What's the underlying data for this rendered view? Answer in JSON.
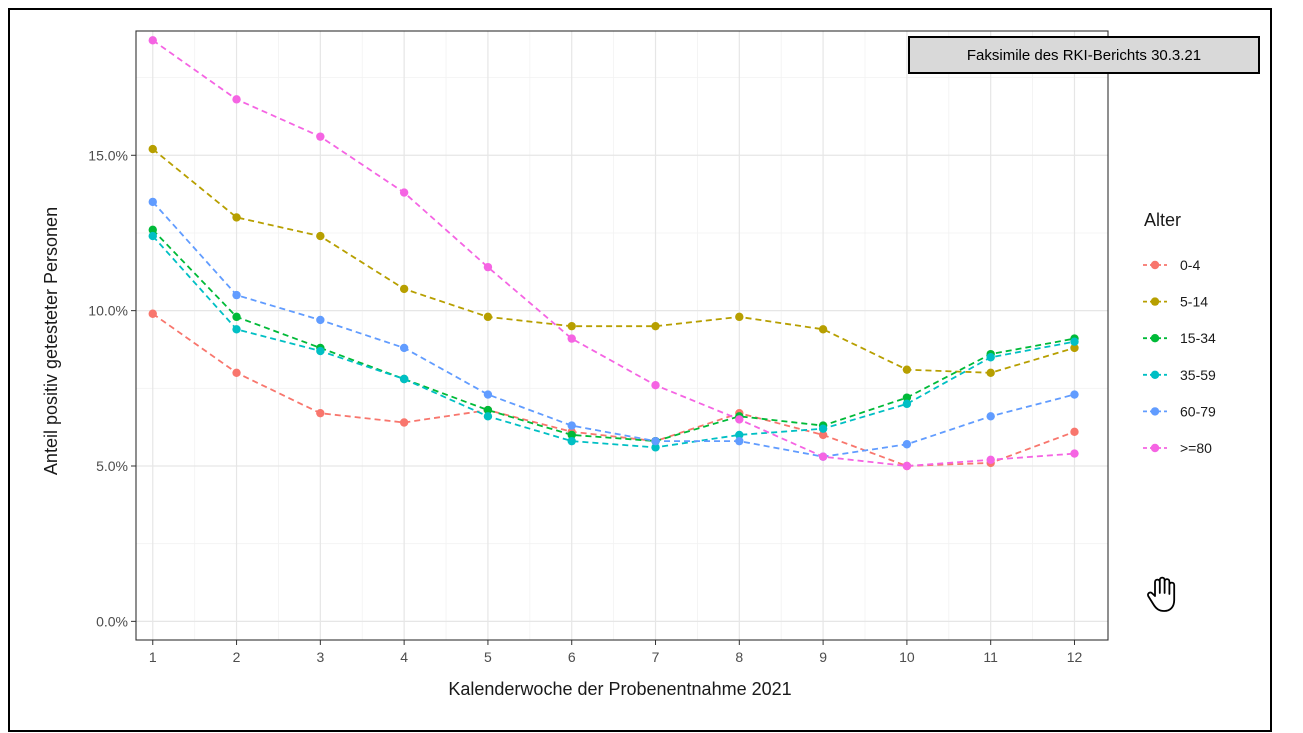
{
  "annotation": "Faksimile des RKI-Berichts 30.3.21",
  "chart_data": {
    "type": "line",
    "title": "",
    "xlabel": "Kalenderwoche der Probenentnahme 2021",
    "ylabel": "Anteil positiv getesteter Personen",
    "x": [
      1,
      2,
      3,
      4,
      5,
      6,
      7,
      8,
      9,
      10,
      11,
      12
    ],
    "xlim": [
      0.8,
      12.4
    ],
    "ylim": [
      -0.006,
      0.19
    ],
    "y_ticks": [
      0.0,
      0.05,
      0.1,
      0.15
    ],
    "y_tick_labels": [
      "0.0%",
      "5.0%",
      "10.0%",
      "15.0%"
    ],
    "x_tick_labels": [
      "1",
      "2",
      "3",
      "4",
      "5",
      "6",
      "7",
      "8",
      "9",
      "10",
      "11",
      "12"
    ],
    "grid": true,
    "line_style": "dashed",
    "legend": {
      "title": "Alter",
      "position": "right"
    },
    "series": [
      {
        "name": "0-4",
        "color": "#F8766D",
        "values": [
          0.099,
          0.08,
          0.067,
          0.064,
          0.068,
          0.061,
          0.058,
          0.067,
          0.06,
          0.05,
          0.051,
          0.061
        ]
      },
      {
        "name": "5-14",
        "color": "#B79F00",
        "values": [
          0.152,
          0.13,
          0.124,
          0.107,
          0.098,
          0.095,
          0.095,
          0.098,
          0.094,
          0.081,
          0.08,
          0.088
        ]
      },
      {
        "name": "15-34",
        "color": "#00BA38",
        "values": [
          0.126,
          0.098,
          0.088,
          0.078,
          0.068,
          0.06,
          0.058,
          0.066,
          0.063,
          0.072,
          0.086,
          0.091
        ]
      },
      {
        "name": "35-59",
        "color": "#00BFC4",
        "values": [
          0.124,
          0.094,
          0.087,
          0.078,
          0.066,
          0.058,
          0.056,
          0.06,
          0.062,
          0.07,
          0.085,
          0.09
        ]
      },
      {
        "name": "60-79",
        "color": "#619CFF",
        "values": [
          0.135,
          0.105,
          0.097,
          0.088,
          0.073,
          0.063,
          0.058,
          0.058,
          0.053,
          0.057,
          0.066,
          0.073
        ]
      },
      {
        "name": ">=80",
        "color": "#F564E3",
        "values": [
          0.187,
          0.168,
          0.156,
          0.138,
          0.114,
          0.091,
          0.076,
          0.065,
          0.053,
          0.05,
          0.052,
          0.054
        ]
      }
    ]
  }
}
